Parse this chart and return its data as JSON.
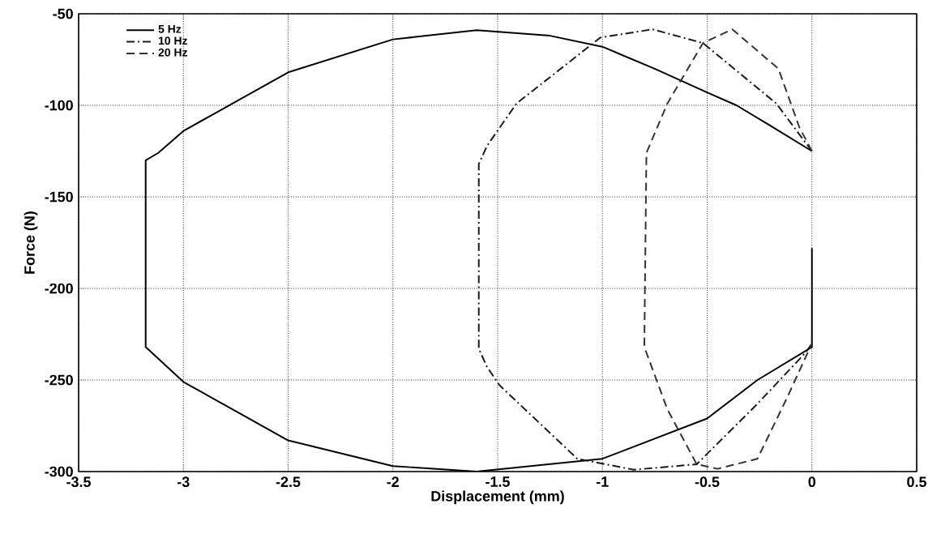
{
  "chart_data": {
    "type": "line",
    "xlabel": "Displacement (mm)",
    "ylabel": "Force (N)",
    "xlim": [
      -3.5,
      0.5
    ],
    "ylim": [
      -300,
      -50
    ],
    "xticks": [
      -3.5,
      -3,
      -2.5,
      -2,
      -1.5,
      -1,
      -0.5,
      0,
      0.5
    ],
    "yticks": [
      -300,
      -250,
      -200,
      -150,
      -100,
      -50
    ],
    "grid": true,
    "legend": "top left",
    "marker": "none",
    "series": [
      {
        "name": "5 Hz",
        "color": "#000000",
        "line_style": "solid",
        "x": [
          0,
          -0.2,
          -0.36,
          -0.5,
          -0.75,
          -1,
          -1.25,
          -1.6,
          -2,
          -2.5,
          -3,
          -3.12,
          -3.18,
          -3.18,
          -3,
          -2.5,
          -2,
          -1.6,
          -1,
          -0.5,
          -0.26,
          0,
          0
        ],
        "values": [
          -125,
          -111,
          -100,
          -93,
          -80,
          -68,
          -62,
          -59,
          -64,
          -82,
          -114,
          -126,
          -130,
          -232,
          -251,
          -283,
          -297,
          -300,
          -293,
          -271,
          -250,
          -232,
          -178
        ]
      },
      {
        "name": "10 Hz",
        "color": "#1a1a1a",
        "line_style": "dashdot",
        "x": [
          0,
          -0.17,
          -0.52,
          -0.76,
          -1.01,
          -1.41,
          -1.55,
          -1.59,
          -1.59,
          -1.55,
          -1.49,
          -1.12,
          -0.85,
          -0.55,
          -0.26,
          -0.03,
          0
        ],
        "values": [
          -125,
          -99,
          -66,
          -58.5,
          -63,
          -99,
          -122,
          -132,
          -233,
          -243,
          -253,
          -293,
          -299,
          -296,
          -263,
          -235,
          -230
        ]
      },
      {
        "name": "20 Hz",
        "color": "#333333",
        "line_style": "dashed",
        "x": [
          0,
          -0.06,
          -0.16,
          -0.38,
          -0.52,
          -0.69,
          -0.79,
          -0.8,
          -0.69,
          -0.55,
          -0.45,
          -0.26,
          -0.12,
          0
        ],
        "values": [
          -125,
          -112,
          -80,
          -58.5,
          -66,
          -99,
          -126,
          -232,
          -266,
          -296,
          -298.5,
          -293,
          -260,
          -230
        ]
      }
    ]
  }
}
